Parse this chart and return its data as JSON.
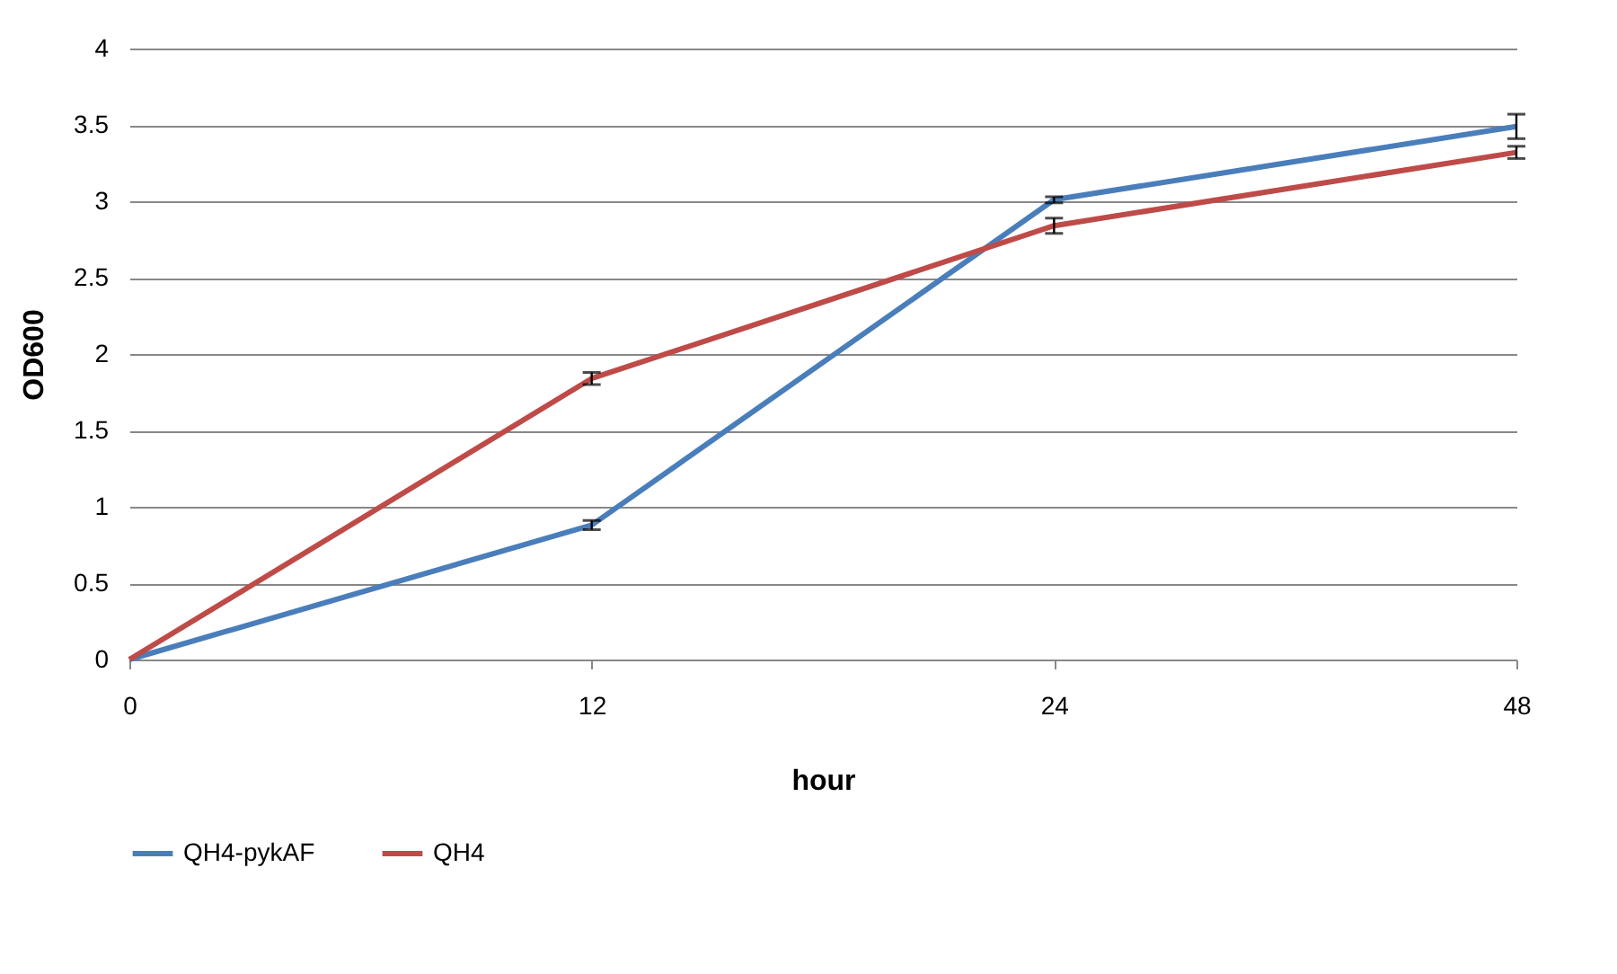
{
  "chart_data": {
    "type": "line",
    "xlabel": "hour",
    "ylabel": "OD600",
    "categories": [
      "0",
      "12",
      "24",
      "48"
    ],
    "series": [
      {
        "name": "QH4-pykAF",
        "color": "#4a7ebb",
        "values": [
          0,
          0.88,
          3.01,
          3.49
        ],
        "errors": [
          null,
          0.03,
          0.02,
          0.08
        ]
      },
      {
        "name": "QH4",
        "color": "#be4b48",
        "values": [
          0,
          1.84,
          2.84,
          3.32
        ],
        "errors": [
          null,
          0.04,
          0.05,
          0.04
        ]
      }
    ],
    "ylim": [
      0,
      4
    ],
    "yticks": [
      0,
      0.5,
      1,
      1.5,
      2,
      2.5,
      3,
      3.5,
      4
    ],
    "grid": "y",
    "legend": "bottom",
    "marker": "none",
    "line_style": "solid"
  }
}
